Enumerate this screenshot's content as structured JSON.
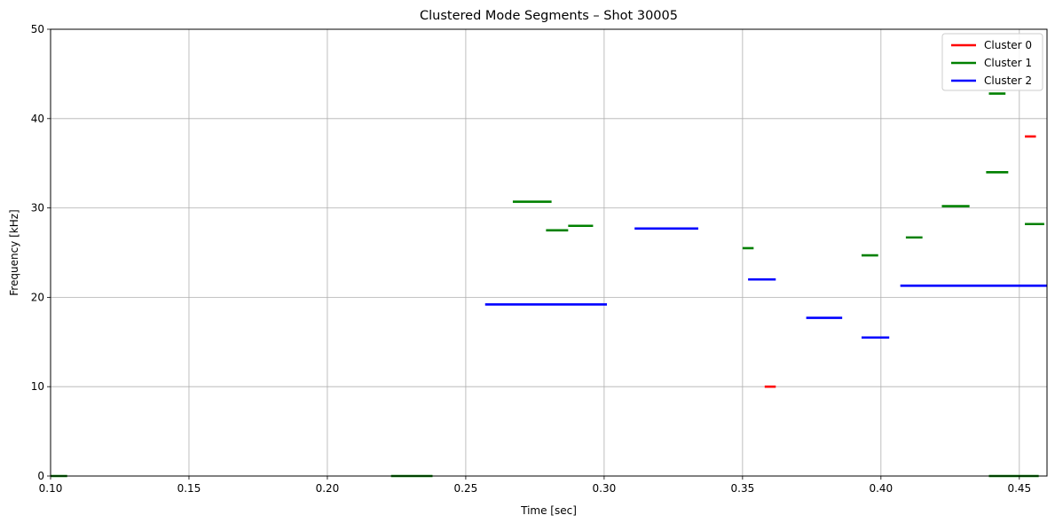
{
  "chart_data": {
    "type": "line",
    "title": "Clustered Mode Segments – Shot 30005",
    "xlabel": "Time [sec]",
    "ylabel": "Frequency [kHz]",
    "xlim": [
      0.1,
      0.46
    ],
    "ylim": [
      0,
      50
    ],
    "xticks": [
      0.1,
      0.15,
      0.2,
      0.25,
      0.3,
      0.35,
      0.4,
      0.45
    ],
    "xtick_labels": [
      "0.10",
      "0.15",
      "0.20",
      "0.25",
      "0.30",
      "0.35",
      "0.40",
      "0.45"
    ],
    "yticks": [
      0,
      10,
      20,
      30,
      40,
      50
    ],
    "ytick_labels": [
      "0",
      "10",
      "20",
      "30",
      "40",
      "50"
    ],
    "grid": true,
    "legend_position": "top-right",
    "series": [
      {
        "name": "Cluster 0",
        "color": "#ff0000",
        "segments": [
          {
            "x": [
              0.358,
              0.362
            ],
            "y": 10.0
          },
          {
            "x": [
              0.452,
              0.456
            ],
            "y": 38.0
          }
        ]
      },
      {
        "name": "Cluster 1",
        "color": "#008000",
        "segments": [
          {
            "x": [
              0.1,
              0.106
            ],
            "y": 0.0
          },
          {
            "x": [
              0.223,
              0.238
            ],
            "y": 0.0
          },
          {
            "x": [
              0.267,
              0.281
            ],
            "y": 30.7
          },
          {
            "x": [
              0.279,
              0.287
            ],
            "y": 27.5
          },
          {
            "x": [
              0.287,
              0.296
            ],
            "y": 28.0
          },
          {
            "x": [
              0.35,
              0.354
            ],
            "y": 25.5
          },
          {
            "x": [
              0.393,
              0.399
            ],
            "y": 24.7
          },
          {
            "x": [
              0.409,
              0.415
            ],
            "y": 26.7
          },
          {
            "x": [
              0.422,
              0.432
            ],
            "y": 30.2
          },
          {
            "x": [
              0.438,
              0.446
            ],
            "y": 34.0
          },
          {
            "x": [
              0.439,
              0.445
            ],
            "y": 42.8
          },
          {
            "x": [
              0.439,
              0.457
            ],
            "y": 0.0
          },
          {
            "x": [
              0.452,
              0.459
            ],
            "y": 28.2
          }
        ]
      },
      {
        "name": "Cluster 2",
        "color": "#0000ff",
        "segments": [
          {
            "x": [
              0.257,
              0.301
            ],
            "y": 19.2
          },
          {
            "x": [
              0.311,
              0.334
            ],
            "y": 27.7
          },
          {
            "x": [
              0.352,
              0.362
            ],
            "y": 22.0
          },
          {
            "x": [
              0.373,
              0.386
            ],
            "y": 17.7
          },
          {
            "x": [
              0.393,
              0.403
            ],
            "y": 15.5
          },
          {
            "x": [
              0.407,
              0.46
            ],
            "y": 21.3
          }
        ]
      }
    ]
  }
}
